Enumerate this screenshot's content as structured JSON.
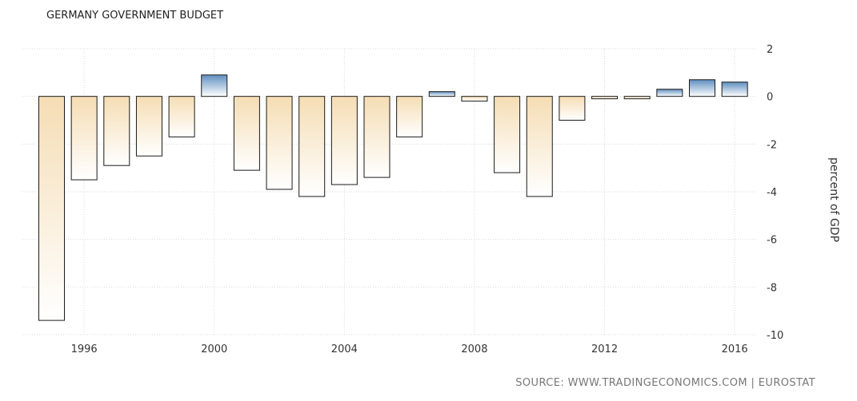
{
  "chart_data": {
    "type": "bar",
    "title": "GERMANY GOVERNMENT BUDGET",
    "ylabel": "percent of GDP",
    "source": "SOURCE: WWW.TRADINGECONOMICS.COM | EUROSTAT",
    "ylim": [
      -10,
      2
    ],
    "yticks": [
      2,
      0,
      -2,
      -4,
      -6,
      -8,
      -10
    ],
    "xticks": [
      1996,
      2000,
      2004,
      2008,
      2012,
      2016
    ],
    "grid": true,
    "years": [
      1995,
      1996,
      1997,
      1998,
      1999,
      2000,
      2001,
      2002,
      2003,
      2004,
      2005,
      2006,
      2007,
      2008,
      2009,
      2010,
      2011,
      2012,
      2013,
      2014,
      2015,
      2016
    ],
    "values": [
      -9.4,
      -3.5,
      -2.9,
      -2.5,
      -1.7,
      0.9,
      -3.1,
      -3.9,
      -4.2,
      -3.7,
      -3.4,
      -1.7,
      0.2,
      -0.2,
      -3.2,
      -4.2,
      -1.0,
      -0.1,
      -0.1,
      0.3,
      0.7,
      0.6
    ],
    "colors": {
      "negative_top": "#f5ddb4",
      "negative_bottom": "#ffffff",
      "positive_top": "#5f8fbf",
      "positive_bottom": "#ffffff",
      "grid": "#d9d9d9",
      "outline": "#1a1a1a"
    }
  }
}
